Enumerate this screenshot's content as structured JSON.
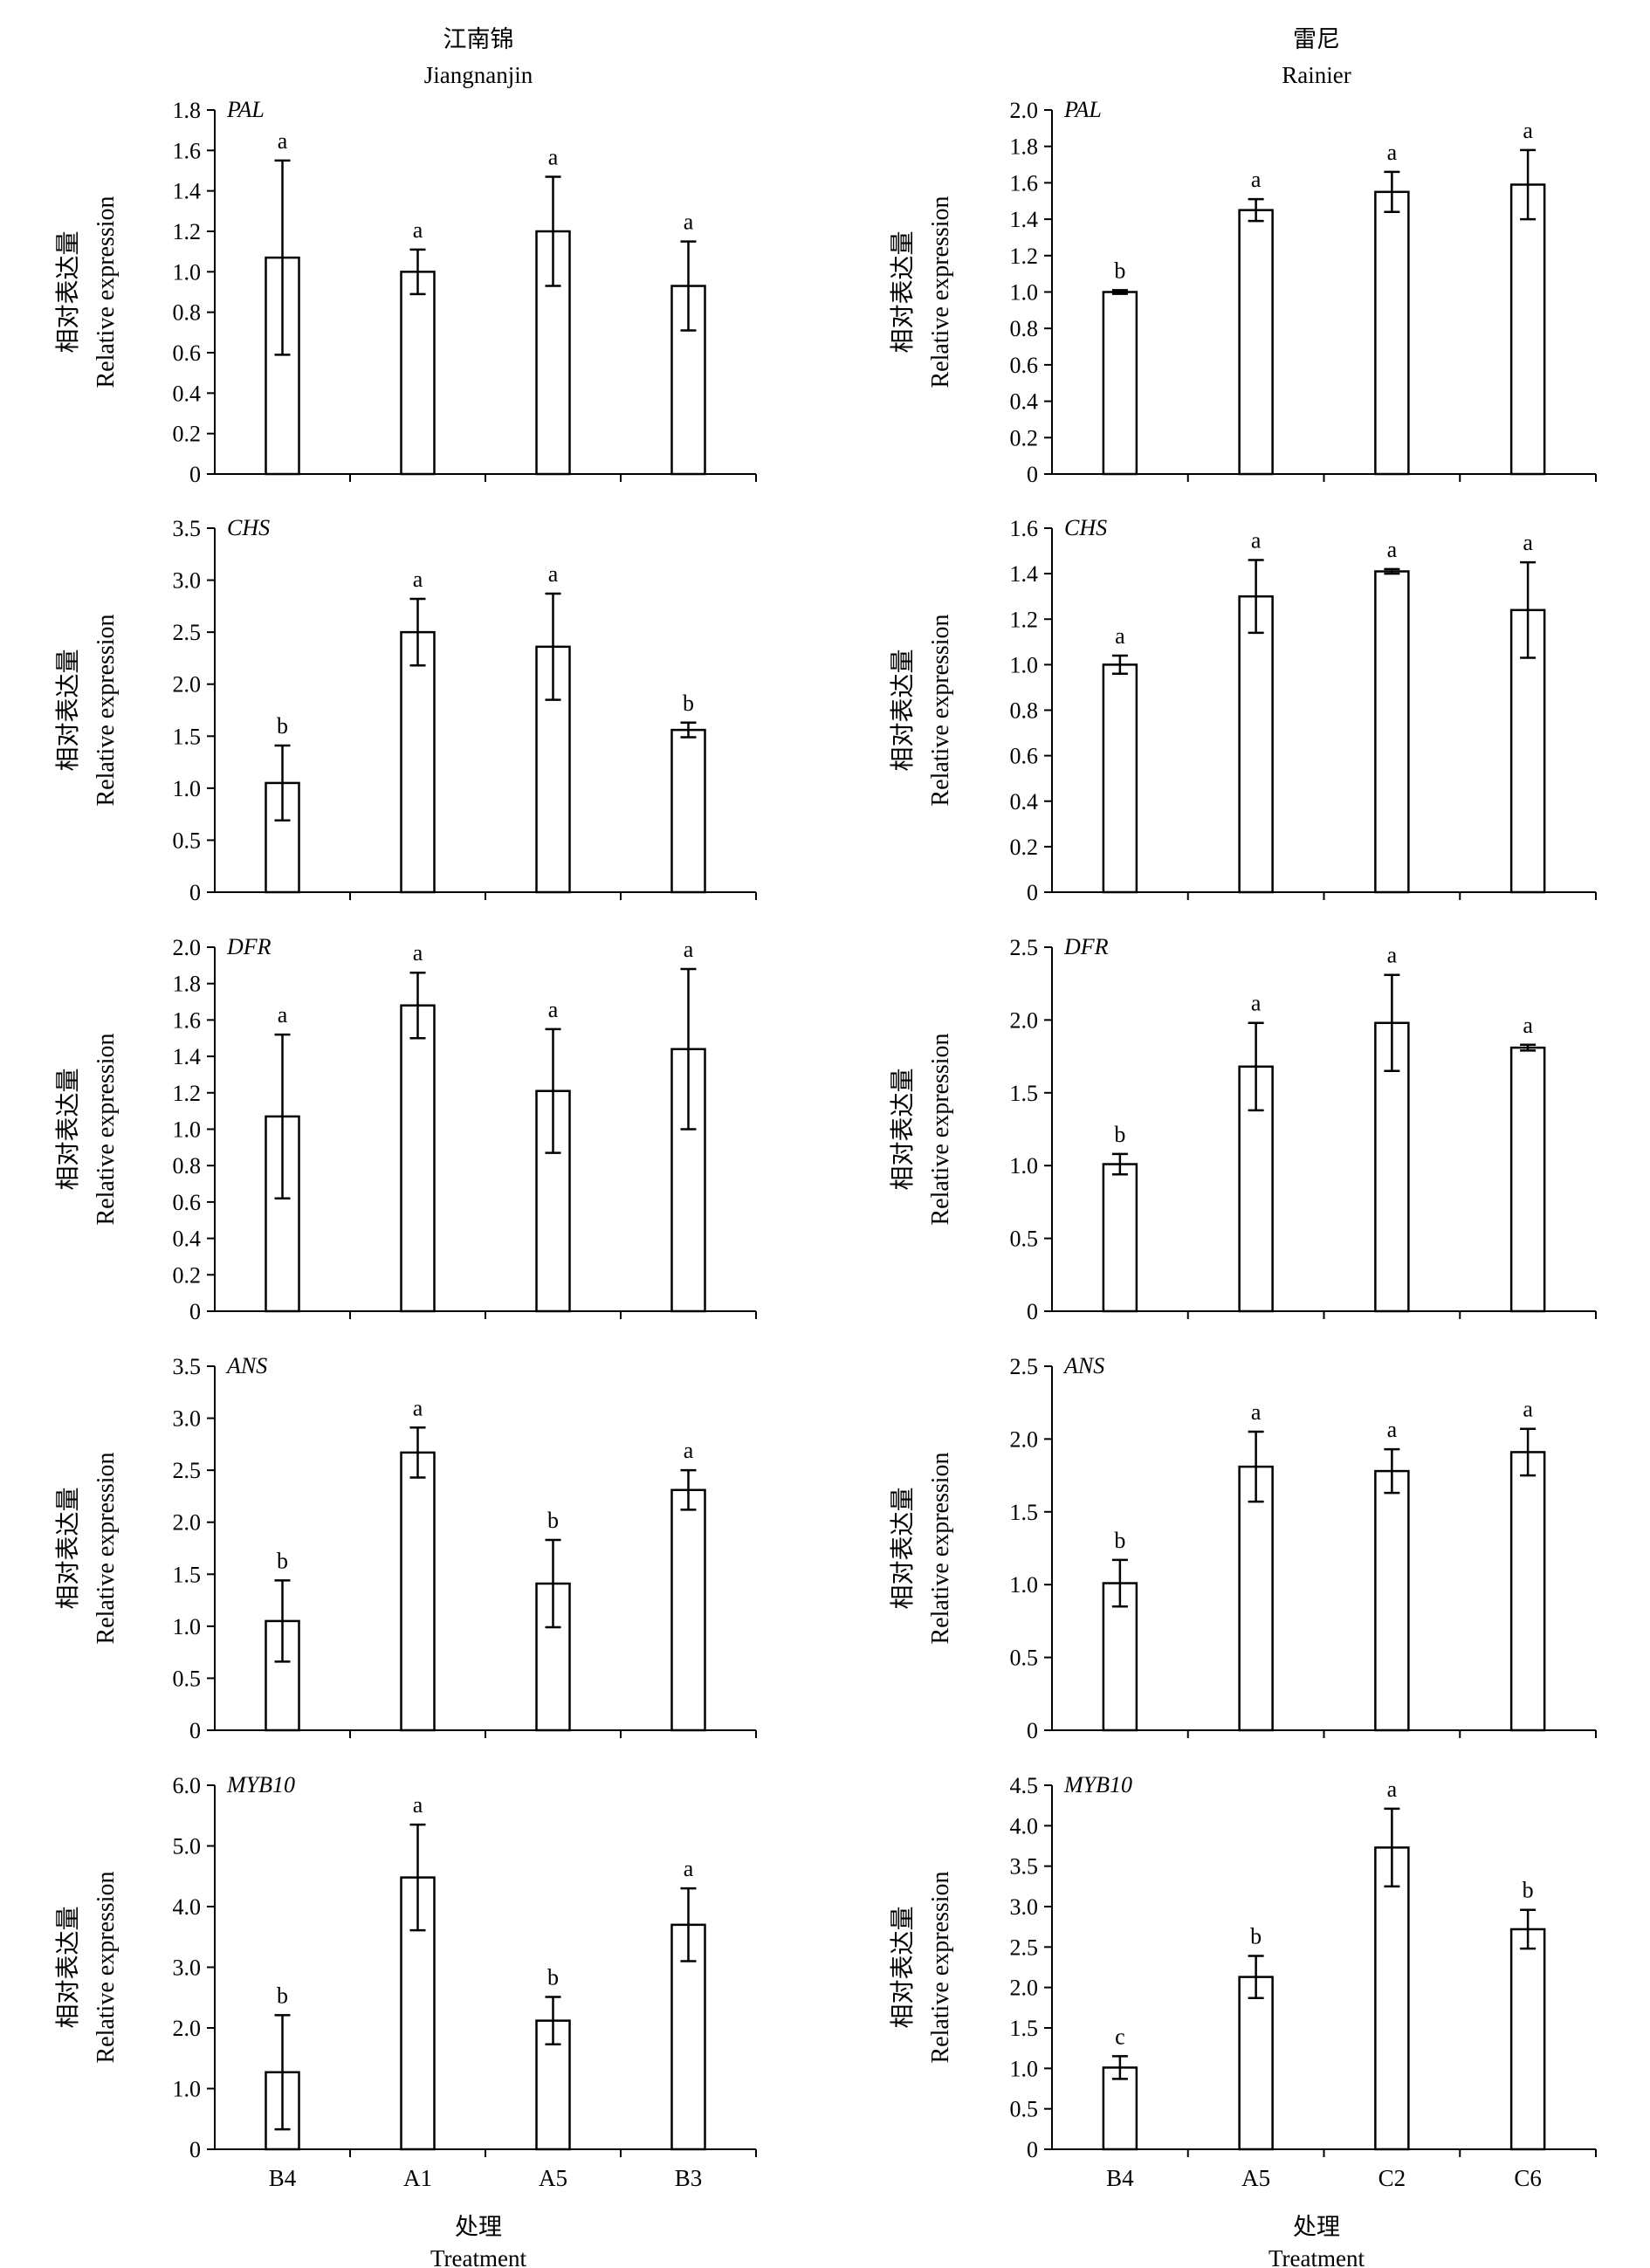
{
  "columns": [
    {
      "title_cn": "江南锦",
      "title_en": "Jiangnanjin",
      "xlabel_cn": "处理",
      "xlabel_en": "Treatment"
    },
    {
      "title_cn": "雷尼",
      "title_en": "Rainier",
      "xlabel_cn": "处理",
      "xlabel_en": "Treatment"
    }
  ],
  "ylabel_cn": "相对表达量",
  "ylabel_en": "Relative expression",
  "chart_data": [
    {
      "type": "bar",
      "column": 0,
      "row": 0,
      "gene": "PAL",
      "categories": [
        "B4",
        "A1",
        "A5",
        "B3"
      ],
      "values": [
        1.07,
        1.0,
        1.2,
        0.93
      ],
      "errors": [
        0.48,
        0.11,
        0.27,
        0.22
      ],
      "letters": [
        "a",
        "a",
        "a",
        "a"
      ],
      "ylim": [
        0,
        1.8
      ],
      "yticks": [
        "0",
        "0.2",
        "0.4",
        "0.6",
        "0.8",
        "1.0",
        "1.2",
        "1.4",
        "1.6",
        "1.8"
      ]
    },
    {
      "type": "bar",
      "column": 0,
      "row": 1,
      "gene": "CHS",
      "categories": [
        "B4",
        "A1",
        "A5",
        "B3"
      ],
      "values": [
        1.05,
        2.5,
        2.36,
        1.56
      ],
      "errors": [
        0.36,
        0.32,
        0.51,
        0.07
      ],
      "letters": [
        "b",
        "a",
        "a",
        "b"
      ],
      "ylim": [
        0,
        3.5
      ],
      "yticks": [
        "0",
        "0.5",
        "1.0",
        "1.5",
        "2.0",
        "2.5",
        "3.0",
        "3.5"
      ]
    },
    {
      "type": "bar",
      "column": 0,
      "row": 2,
      "gene": "DFR",
      "categories": [
        "B4",
        "A1",
        "A5",
        "B3"
      ],
      "values": [
        1.07,
        1.68,
        1.21,
        1.44
      ],
      "errors": [
        0.45,
        0.18,
        0.34,
        0.44
      ],
      "letters": [
        "a",
        "a",
        "a",
        "a"
      ],
      "ylim": [
        0,
        2.0
      ],
      "yticks": [
        "0",
        "0.2",
        "0.4",
        "0.6",
        "0.8",
        "1.0",
        "1.2",
        "1.4",
        "1.6",
        "1.8",
        "2.0"
      ]
    },
    {
      "type": "bar",
      "column": 0,
      "row": 3,
      "gene": "ANS",
      "categories": [
        "B4",
        "A1",
        "A5",
        "B3"
      ],
      "values": [
        1.05,
        2.67,
        1.41,
        2.31
      ],
      "errors": [
        0.39,
        0.24,
        0.42,
        0.19
      ],
      "letters": [
        "b",
        "a",
        "b",
        "a"
      ],
      "ylim": [
        0,
        3.5
      ],
      "yticks": [
        "0",
        "0.5",
        "1.0",
        "1.5",
        "2.0",
        "2.5",
        "3.0",
        "3.5"
      ]
    },
    {
      "type": "bar",
      "column": 0,
      "row": 4,
      "gene": "MYB10",
      "categories": [
        "B4",
        "A1",
        "A5",
        "B3"
      ],
      "values": [
        1.27,
        4.48,
        2.12,
        3.7
      ],
      "errors": [
        0.94,
        0.87,
        0.39,
        0.6
      ],
      "letters": [
        "b",
        "a",
        "b",
        "a"
      ],
      "ylim": [
        0,
        6.0
      ],
      "yticks": [
        "0",
        "1.0",
        "2.0",
        "3.0",
        "4.0",
        "5.0",
        "6.0"
      ]
    },
    {
      "type": "bar",
      "column": 1,
      "row": 0,
      "gene": "PAL",
      "categories": [
        "B4",
        "A5",
        "C2",
        "C6"
      ],
      "values": [
        1.0,
        1.45,
        1.55,
        1.59
      ],
      "errors": [
        0.01,
        0.06,
        0.11,
        0.19
      ],
      "letters": [
        "b",
        "a",
        "a",
        "a"
      ],
      "ylim": [
        0,
        2.0
      ],
      "yticks": [
        "0",
        "0.2",
        "0.4",
        "0.6",
        "0.8",
        "1.0",
        "1.2",
        "1.4",
        "1.6",
        "1.8",
        "2.0"
      ]
    },
    {
      "type": "bar",
      "column": 1,
      "row": 1,
      "gene": "CHS",
      "categories": [
        "B4",
        "A5",
        "C2",
        "C6"
      ],
      "values": [
        1.0,
        1.3,
        1.41,
        1.24
      ],
      "errors": [
        0.04,
        0.16,
        0.01,
        0.21
      ],
      "letters": [
        "a",
        "a",
        "a",
        "a"
      ],
      "ylim": [
        0,
        1.6
      ],
      "yticks": [
        "0",
        "0.2",
        "0.4",
        "0.6",
        "0.8",
        "1.0",
        "1.2",
        "1.4",
        "1.6"
      ]
    },
    {
      "type": "bar",
      "column": 1,
      "row": 2,
      "gene": "DFR",
      "categories": [
        "B4",
        "A5",
        "C2",
        "C6"
      ],
      "values": [
        1.01,
        1.68,
        1.98,
        1.81
      ],
      "errors": [
        0.07,
        0.3,
        0.33,
        0.02
      ],
      "letters": [
        "b",
        "a",
        "a",
        "a"
      ],
      "ylim": [
        0,
        2.5
      ],
      "yticks": [
        "0",
        "0.5",
        "1.0",
        "1.5",
        "2.0",
        "2.5"
      ]
    },
    {
      "type": "bar",
      "column": 1,
      "row": 3,
      "gene": "ANS",
      "categories": [
        "B4",
        "A5",
        "C2",
        "C6"
      ],
      "values": [
        1.01,
        1.81,
        1.78,
        1.91
      ],
      "errors": [
        0.16,
        0.24,
        0.15,
        0.16
      ],
      "letters": [
        "b",
        "a",
        "a",
        "a"
      ],
      "ylim": [
        0,
        2.5
      ],
      "yticks": [
        "0",
        "0.5",
        "1.0",
        "1.5",
        "2.0",
        "2.5"
      ]
    },
    {
      "type": "bar",
      "column": 1,
      "row": 4,
      "gene": "MYB10",
      "categories": [
        "B4",
        "A5",
        "C2",
        "C6"
      ],
      "values": [
        1.01,
        2.13,
        3.73,
        2.72
      ],
      "errors": [
        0.14,
        0.26,
        0.48,
        0.24
      ],
      "letters": [
        "c",
        "b",
        "a",
        "b"
      ],
      "ylim": [
        0,
        4.5
      ],
      "yticks": [
        "0",
        "0.5",
        "1.0",
        "1.5",
        "2.0",
        "2.5",
        "3.0",
        "3.5",
        "4.0",
        "4.5"
      ]
    }
  ]
}
